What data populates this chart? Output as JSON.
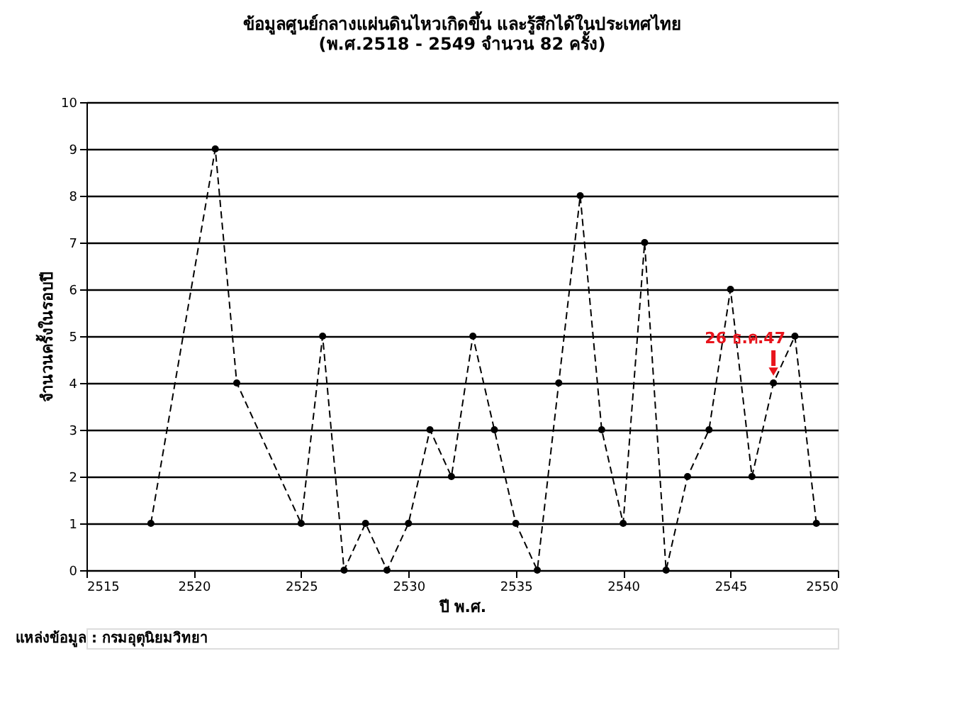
{
  "chart_data": {
    "type": "line",
    "title": [
      "ข้อมูลศูนย์กลางแผ่นดินไหวเกิดขึ้น และรู้สึกได้ในประเทศไทย",
      "(พ.ศ.2518 - 2549 จำนวน 82 ครั้ง)"
    ],
    "xlabel": "ปี พ.ศ.",
    "ylabel": "จำนวนครั้งในรอบปี",
    "x": [
      2518,
      2521,
      2522,
      2525,
      2526,
      2527,
      2528,
      2529,
      2530,
      2531,
      2532,
      2533,
      2534,
      2535,
      2536,
      2537,
      2538,
      2539,
      2540,
      2541,
      2542,
      2543,
      2544,
      2545,
      2546,
      2547,
      2548,
      2549
    ],
    "series": [
      {
        "color": "#000000",
        "values": [
          1,
          9,
          4,
          1,
          5,
          0,
          1,
          0,
          1,
          3,
          2,
          5,
          3,
          1,
          0,
          4,
          8,
          3,
          1,
          7,
          0,
          2,
          3,
          6,
          2,
          4,
          5,
          1
        ]
      }
    ],
    "xlim": [
      2515,
      2550
    ],
    "xticks": [
      2515,
      2520,
      2525,
      2530,
      2535,
      2540,
      2545,
      2550
    ],
    "ylim": [
      0,
      10
    ],
    "yticks": [
      0,
      1,
      2,
      3,
      4,
      5,
      6,
      7,
      8,
      9,
      10
    ],
    "grid": "y",
    "marker": "circle",
    "line_style": "dashed",
    "annotations": [
      {
        "text": "26 ธ.ค.47",
        "x": 2547,
        "y": 4
      },
      "แหล่งข้อมูล : กรมอุตุนิยมวิทยา"
    ]
  }
}
